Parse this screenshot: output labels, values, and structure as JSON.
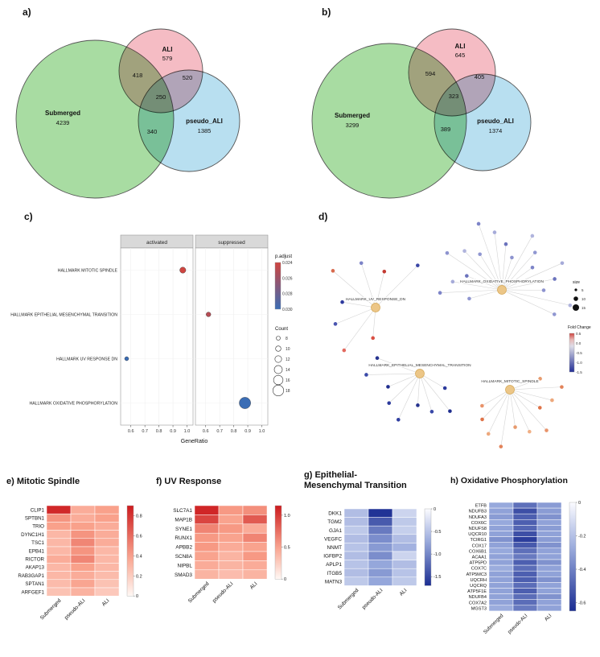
{
  "panels": {
    "a": {
      "label": "a)"
    },
    "b": {
      "label": "b)"
    },
    "c": {
      "label": "c)"
    },
    "d": {
      "label": "d)"
    },
    "e": {
      "title": "e) Mitotic Spindle"
    },
    "f": {
      "title": "f) UV Response"
    },
    "g": {
      "title_line1": "g) Epithelial-",
      "title_line2": "Mesenchymal Transition"
    },
    "h": {
      "title": "h) Oxidative Phosphorylation"
    }
  },
  "chart_data": [
    {
      "id": "venn_a",
      "type": "venn",
      "sets": [
        {
          "name": "Submerged",
          "unique": 4239,
          "color": "#a8dca2"
        },
        {
          "name": "ALI",
          "unique": 579,
          "color": "#f5bcc4"
        },
        {
          "name": "pseudo_ALI",
          "unique": 1385,
          "color": "#b8dff0"
        }
      ],
      "overlaps": {
        "submerged_ali": 418,
        "ali_pseudo": 520,
        "all_three": 250,
        "submerged_pseudo": 340
      }
    },
    {
      "id": "venn_b",
      "type": "venn",
      "sets": [
        {
          "name": "Submerged",
          "unique": 3299,
          "color": "#a8dca2"
        },
        {
          "name": "ALI",
          "unique": 645,
          "color": "#f5bcc4"
        },
        {
          "name": "pseudo_ALI",
          "unique": 1374,
          "color": "#b8dff0"
        }
      ],
      "overlaps": {
        "submerged_ali": 594,
        "ali_pseudo": 405,
        "all_three": 323,
        "submerged_pseudo": 389
      }
    },
    {
      "id": "dotplot",
      "type": "scatter",
      "facets": [
        "activated",
        "suppressed"
      ],
      "categories": [
        "HALLMARK MITOTIC SPINDLE",
        "HALLMARK EPITHELIAL MESENCHYMAL TRANSITION",
        "HALLMARK UV RESPONSE DN",
        "HALLMARK OXIDATIVE PHOSPHORYLATION"
      ],
      "points": [
        {
          "category_index": 0,
          "facet": "activated",
          "gene_ratio": 0.97,
          "p_adjust": 0.024,
          "count": 11
        },
        {
          "category_index": 1,
          "facet": "suppressed",
          "gene_ratio": 0.62,
          "p_adjust": 0.025,
          "count": 9
        },
        {
          "category_index": 2,
          "facet": "activated",
          "gene_ratio": 0.57,
          "p_adjust": 0.03,
          "count": 8
        },
        {
          "category_index": 3,
          "facet": "suppressed",
          "gene_ratio": 0.88,
          "p_adjust": 0.03,
          "count": 19
        }
      ],
      "xlabel": "GeneRatio",
      "xticks": [
        0.6,
        0.7,
        0.8,
        0.9,
        1.0
      ],
      "xlim": [
        0.55,
        1.02
      ],
      "legend": {
        "p_adjust_label": "p.adjust",
        "p_adjust_ticks": [
          0.024,
          0.026,
          0.028,
          0.03
        ],
        "count_label": "Count",
        "count_ticks": [
          8,
          10,
          12,
          14,
          16,
          18
        ]
      }
    },
    {
      "id": "network",
      "type": "network",
      "hubs": [
        {
          "name": "HALLMARK_OXIDATIVE_PHOSPHORYLATION",
          "genes": 19,
          "node_colors": [
            "#9097d1",
            "#7d84c8",
            "#a6abd9",
            "#6b73bd",
            "#8d93cf",
            "#b0b4dd"
          ]
        },
        {
          "name": "HALLMARK_UV_RESPONSE_DN",
          "genes": 8,
          "node_colors": [
            "#d94f43",
            "#e2695f",
            "#4a55b0",
            "#2e3a9e",
            "#d86a4e",
            "#7d84c8",
            "#c33a32",
            "#3a46a6"
          ]
        },
        {
          "name": "HALLMARK_EPITHELIAL_MESENCHYMAL_TRANSITION",
          "genes": 9,
          "node_colors": [
            "#2c3a9c",
            "#1f2d8e",
            "#3a49a8",
            "#27348f",
            "#303fa0"
          ]
        },
        {
          "name": "HALLMARK_MITOTIC_SPINDLE",
          "genes": 11,
          "node_colors": [
            "#e79a6d",
            "#e2835a",
            "#eda87c",
            "#df7348",
            "#e8936a",
            "#f0b086"
          ]
        }
      ],
      "legend": {
        "size_label": "size",
        "size_ticks": [
          5,
          10,
          15
        ],
        "fold_change_label": "Fold Change",
        "fold_change_ticks": [
          0.5,
          0.0,
          -0.5,
          -1.0,
          -1.5
        ]
      }
    },
    {
      "id": "hm_mitotic",
      "type": "heatmap",
      "title": "e) Mitotic Spindle",
      "columns": [
        "Submerged",
        "pseudo-ALI",
        "ALI"
      ],
      "rows": [
        "CLIP1",
        "SPTBN1",
        "TRIO",
        "DYNC1H1",
        "TSC1",
        "EPB41",
        "RICTOR",
        "AKAP13",
        "RAB3GAP1",
        "SPTAN1",
        "ARFGEF1"
      ],
      "values": [
        [
          0.85,
          0.35,
          0.4
        ],
        [
          0.45,
          0.35,
          0.4
        ],
        [
          0.4,
          0.4,
          0.35
        ],
        [
          0.3,
          0.45,
          0.35
        ],
        [
          0.3,
          0.5,
          0.35
        ],
        [
          0.3,
          0.45,
          0.3
        ],
        [
          0.35,
          0.5,
          0.3
        ],
        [
          0.3,
          0.4,
          0.3
        ],
        [
          0.3,
          0.35,
          0.28
        ],
        [
          0.28,
          0.38,
          0.25
        ],
        [
          0.25,
          0.32,
          0.22
        ]
      ],
      "colorscale": "red",
      "colorbar_top": 0.9,
      "colorbar_bottom": 0,
      "colorbar_ticks": [
        "0.8",
        "0.6",
        "0.4",
        "0.2",
        "0"
      ]
    },
    {
      "id": "hm_uv",
      "type": "heatmap",
      "title": "f) UV Response",
      "columns": [
        "Submerged",
        "pseudo-ALI",
        "ALI"
      ],
      "rows": [
        "SLC7A1",
        "MAP1B",
        "SYNE1",
        "RUNX1",
        "APBB2",
        "SCN8A",
        "NIPBL",
        "SMAD3"
      ],
      "values": [
        [
          1.1,
          0.55,
          0.6
        ],
        [
          0.95,
          0.5,
          0.85
        ],
        [
          0.65,
          0.55,
          0.45
        ],
        [
          0.55,
          0.5,
          0.65
        ],
        [
          0.55,
          0.45,
          0.5
        ],
        [
          0.5,
          0.4,
          0.55
        ],
        [
          0.45,
          0.4,
          0.45
        ],
        [
          0.4,
          0.35,
          0.4
        ]
      ],
      "colorscale": "red",
      "colorbar_top": 1.15,
      "colorbar_bottom": 0,
      "colorbar_ticks": [
        "1.0",
        "0.5",
        "0"
      ]
    },
    {
      "id": "hm_emt",
      "type": "heatmap",
      "title": "g) Epithelial-Mesenchymal Transition",
      "columns": [
        "Submerged",
        "pseudo-ALI",
        "ALI"
      ],
      "rows": [
        "DKK1",
        "TGM2",
        "GJA1",
        "VEGFC",
        "NNMT",
        "IGFBP2",
        "APLP1",
        "ITGB5",
        "MATN3"
      ],
      "values": [
        [
          -0.55,
          -1.65,
          -0.35
        ],
        [
          -0.55,
          -1.35,
          -0.45
        ],
        [
          -0.45,
          -1.1,
          -0.4
        ],
        [
          -0.55,
          -0.95,
          -0.55
        ],
        [
          -0.5,
          -0.85,
          -0.65
        ],
        [
          -0.55,
          -0.95,
          -0.35
        ],
        [
          -0.5,
          -0.75,
          -0.55
        ],
        [
          -0.55,
          -0.85,
          -0.5
        ],
        [
          -0.45,
          -0.75,
          -0.45
        ]
      ],
      "colorscale": "blue",
      "colorbar_top": 0,
      "colorbar_bottom": -1.7,
      "colorbar_ticks": [
        "0",
        "-0.5",
        "-1.0",
        "-1.5"
      ]
    },
    {
      "id": "hm_oxphos",
      "type": "heatmap",
      "title": "h) Oxidative Phosphorylation",
      "columns": [
        "Submerged",
        "pseudo-ALI",
        "ALI"
      ],
      "rows": [
        "ETFB",
        "NDUFB3",
        "NDUFA3",
        "COX6C",
        "NDUFS8",
        "UQCR10",
        "TCIRG1",
        "COX17",
        "COX6B1",
        "ACAA1",
        "ATP5PD",
        "COX7C",
        "ATP5MC3",
        "UQCRH",
        "UQCRQ",
        "ATP5F1E",
        "NDUFB4",
        "COX7A2",
        "MGST3"
      ],
      "values": [
        [
          -0.28,
          -0.45,
          -0.32
        ],
        [
          -0.3,
          -0.55,
          -0.32
        ],
        [
          -0.32,
          -0.5,
          -0.35
        ],
        [
          -0.28,
          -0.5,
          -0.3
        ],
        [
          -0.3,
          -0.48,
          -0.32
        ],
        [
          -0.3,
          -0.55,
          -0.3
        ],
        [
          -0.35,
          -0.6,
          -0.32
        ],
        [
          -0.3,
          -0.52,
          -0.35
        ],
        [
          -0.28,
          -0.45,
          -0.3
        ],
        [
          -0.3,
          -0.42,
          -0.3
        ],
        [
          -0.3,
          -0.5,
          -0.35
        ],
        [
          -0.27,
          -0.46,
          -0.3
        ],
        [
          -0.3,
          -0.5,
          -0.3
        ],
        [
          -0.3,
          -0.5,
          -0.35
        ],
        [
          -0.3,
          -0.46,
          -0.3
        ],
        [
          -0.3,
          -0.5,
          -0.3
        ],
        [
          -0.3,
          -0.46,
          -0.35
        ],
        [
          -0.3,
          -0.46,
          -0.3
        ],
        [
          -0.27,
          -0.42,
          -0.3
        ]
      ],
      "colorscale": "blue",
      "colorbar_top": 0,
      "colorbar_bottom": -0.65,
      "colorbar_ticks": [
        "0",
        "-0.2",
        "-0.4",
        "-0.6"
      ]
    }
  ]
}
